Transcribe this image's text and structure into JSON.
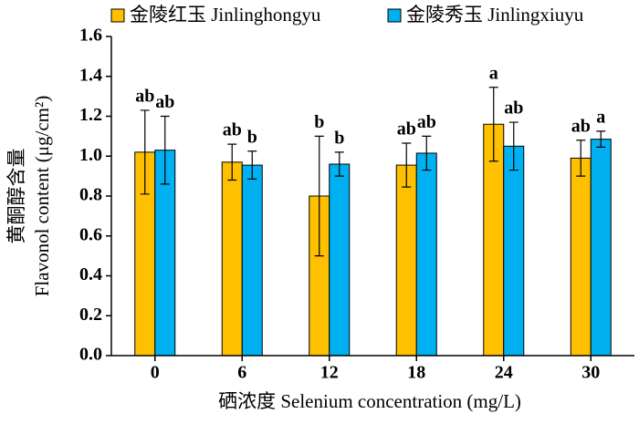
{
  "chart_data": {
    "type": "bar",
    "x_label": "硒浓度 Selenium concentration (mg/L)",
    "y_label": [
      "黄酮醇含量",
      "Flavonol content (μg/cm²)"
    ],
    "categories": [
      "0",
      "6",
      "12",
      "18",
      "24",
      "30"
    ],
    "series": [
      {
        "name": "金陵红玉 Jinlinghongyu",
        "color": "#FFC000",
        "values": [
          1.02,
          0.97,
          0.8,
          0.955,
          1.16,
          0.99
        ],
        "errors": [
          0.21,
          0.09,
          0.3,
          0.11,
          0.185,
          0.09
        ],
        "annotations": [
          "ab",
          "ab",
          "b",
          "ab",
          "a",
          "ab"
        ]
      },
      {
        "name": "金陵秀玉 Jinlingxiuyu",
        "color": "#00B0F0",
        "values": [
          1.03,
          0.955,
          0.96,
          1.015,
          1.05,
          1.085
        ],
        "errors": [
          0.17,
          0.07,
          0.06,
          0.085,
          0.12,
          0.04
        ],
        "annotations": [
          "ab",
          "b",
          "b",
          "ab",
          "ab",
          "a"
        ]
      }
    ],
    "ylim": [
      0,
      1.6
    ],
    "yticks": [
      {
        "value": 0,
        "label": "0.0"
      },
      {
        "value": 0.2,
        "label": "0.2"
      },
      {
        "value": 0.4,
        "label": "0.4"
      },
      {
        "value": 0.6,
        "label": "0.6"
      },
      {
        "value": 0.8,
        "label": "0.8"
      },
      {
        "value": 1,
        "label": "1.0"
      },
      {
        "value": 1.2,
        "label": "1.2"
      },
      {
        "value": 1.4,
        "label": "1.4"
      },
      {
        "value": 1.6,
        "label": "1.6"
      }
    ],
    "legend": "top"
  }
}
